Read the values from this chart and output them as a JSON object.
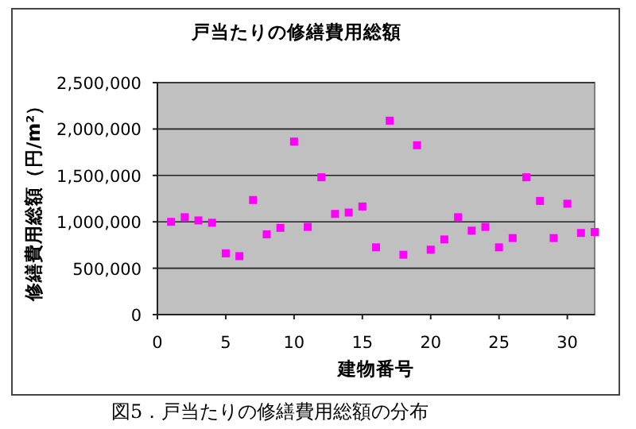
{
  "chart_data": {
    "type": "scatter",
    "title": "戸当たりの修繕費用総額",
    "xlabel": "建物番号",
    "ylabel": "修繕費用総額（円/m²）",
    "annotations": [
      "図5．戸当たりの修繕費用総額の分布"
    ],
    "x": [
      1,
      2,
      3,
      4,
      5,
      6,
      7,
      8,
      9,
      10,
      11,
      12,
      13,
      14,
      15,
      16,
      17,
      18,
      19,
      20,
      21,
      22,
      23,
      24,
      25,
      26,
      27,
      28,
      29,
      30,
      31,
      32
    ],
    "values": [
      1000000,
      1050000,
      1015000,
      990000,
      660000,
      630000,
      1235000,
      865000,
      935000,
      1865000,
      945000,
      1480000,
      1085000,
      1100000,
      1165000,
      725000,
      2090000,
      645000,
      1825000,
      700000,
      810000,
      1050000,
      905000,
      945000,
      725000,
      825000,
      1480000,
      1225000,
      825000,
      1195000,
      880000,
      890000
    ],
    "color": "#ff00ff",
    "marker": "square",
    "grid": "y",
    "xlim": [
      0,
      32
    ],
    "xticks": [
      0,
      5,
      10,
      15,
      20,
      25,
      30
    ],
    "ylim": [
      0,
      2500000
    ],
    "yticks": [
      {
        "value": 0,
        "label": "0"
      },
      {
        "value": 500000,
        "label": "500,000"
      },
      {
        "value": 1000000,
        "label": "1,000,000"
      },
      {
        "value": 1500000,
        "label": "1,500,000"
      },
      {
        "value": 2000000,
        "label": "2,000,000"
      },
      {
        "value": 2500000,
        "label": "2,500,000"
      }
    ]
  }
}
